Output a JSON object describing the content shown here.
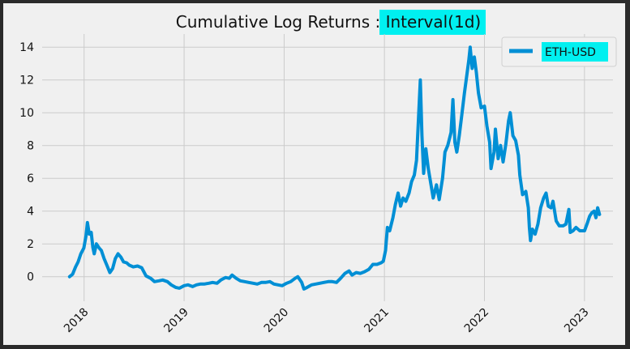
{
  "chart_data": {
    "type": "line",
    "title_prefix": "Cumulative Log Returns : ",
    "title_highlight": "Interval(1d)",
    "title_highlight_color": "#00f0f0",
    "xlabel": "",
    "ylabel": "",
    "xlim": [
      "2017-08-01",
      "2023-04-15"
    ],
    "ylim": [
      -1.2,
      14.8
    ],
    "grid": true,
    "legend_position": "top-right",
    "x_ticks": [
      "2018",
      "2019",
      "2020",
      "2021",
      "2022",
      "2023"
    ],
    "y_ticks": [
      "0",
      "2",
      "4",
      "6",
      "8",
      "10",
      "12",
      "14"
    ],
    "series": [
      {
        "name": "ETH-USD",
        "color": "#008fd5",
        "legend_bg": "#00f0f0",
        "points": [
          [
            "2017-11-09",
            0.0
          ],
          [
            "2017-11-20",
            0.15
          ],
          [
            "2017-12-01",
            0.6
          ],
          [
            "2017-12-10",
            0.9
          ],
          [
            "2017-12-20",
            1.4
          ],
          [
            "2017-12-31",
            1.75
          ],
          [
            "2018-01-08",
            2.5
          ],
          [
            "2018-01-13",
            3.3
          ],
          [
            "2018-01-20",
            2.6
          ],
          [
            "2018-01-27",
            2.7
          ],
          [
            "2018-02-02",
            1.8
          ],
          [
            "2018-02-07",
            1.4
          ],
          [
            "2018-02-15",
            2.0
          ],
          [
            "2018-02-25",
            1.75
          ],
          [
            "2018-03-05",
            1.6
          ],
          [
            "2018-03-15",
            1.1
          ],
          [
            "2018-03-25",
            0.7
          ],
          [
            "2018-04-05",
            0.25
          ],
          [
            "2018-04-15",
            0.5
          ],
          [
            "2018-04-25",
            1.1
          ],
          [
            "2018-05-05",
            1.4
          ],
          [
            "2018-05-15",
            1.2
          ],
          [
            "2018-05-25",
            0.9
          ],
          [
            "2018-06-05",
            0.85
          ],
          [
            "2018-06-15",
            0.7
          ],
          [
            "2018-06-30",
            0.6
          ],
          [
            "2018-07-15",
            0.65
          ],
          [
            "2018-07-30",
            0.55
          ],
          [
            "2018-08-15",
            0.05
          ],
          [
            "2018-09-01",
            -0.1
          ],
          [
            "2018-09-15",
            -0.3
          ],
          [
            "2018-10-01",
            -0.25
          ],
          [
            "2018-10-15",
            -0.2
          ],
          [
            "2018-11-01",
            -0.3
          ],
          [
            "2018-11-15",
            -0.5
          ],
          [
            "2018-12-01",
            -0.65
          ],
          [
            "2018-12-15",
            -0.7
          ],
          [
            "2019-01-01",
            -0.55
          ],
          [
            "2019-01-15",
            -0.5
          ],
          [
            "2019-02-01",
            -0.6
          ],
          [
            "2019-02-15",
            -0.5
          ],
          [
            "2019-03-01",
            -0.45
          ],
          [
            "2019-03-15",
            -0.45
          ],
          [
            "2019-04-01",
            -0.4
          ],
          [
            "2019-04-15",
            -0.35
          ],
          [
            "2019-05-01",
            -0.4
          ],
          [
            "2019-05-15",
            -0.2
          ],
          [
            "2019-06-01",
            -0.05
          ],
          [
            "2019-06-15",
            -0.1
          ],
          [
            "2019-06-25",
            0.1
          ],
          [
            "2019-07-10",
            -0.1
          ],
          [
            "2019-07-25",
            -0.25
          ],
          [
            "2019-08-10",
            -0.3
          ],
          [
            "2019-08-25",
            -0.35
          ],
          [
            "2019-09-10",
            -0.4
          ],
          [
            "2019-09-25",
            -0.45
          ],
          [
            "2019-10-10",
            -0.35
          ],
          [
            "2019-10-25",
            -0.35
          ],
          [
            "2019-11-10",
            -0.3
          ],
          [
            "2019-11-25",
            -0.45
          ],
          [
            "2019-12-10",
            -0.5
          ],
          [
            "2019-12-25",
            -0.55
          ],
          [
            "2020-01-10",
            -0.4
          ],
          [
            "2020-01-25",
            -0.3
          ],
          [
            "2020-02-10",
            -0.1
          ],
          [
            "2020-02-20",
            0.0
          ],
          [
            "2020-03-05",
            -0.35
          ],
          [
            "2020-03-13",
            -0.75
          ],
          [
            "2020-03-25",
            -0.65
          ],
          [
            "2020-04-10",
            -0.5
          ],
          [
            "2020-04-25",
            -0.45
          ],
          [
            "2020-05-10",
            -0.4
          ],
          [
            "2020-05-25",
            -0.35
          ],
          [
            "2020-06-10",
            -0.3
          ],
          [
            "2020-06-25",
            -0.3
          ],
          [
            "2020-07-10",
            -0.35
          ],
          [
            "2020-07-25",
            -0.1
          ],
          [
            "2020-08-10",
            0.2
          ],
          [
            "2020-08-25",
            0.35
          ],
          [
            "2020-09-05",
            0.1
          ],
          [
            "2020-09-20",
            0.25
          ],
          [
            "2020-10-05",
            0.2
          ],
          [
            "2020-10-20",
            0.3
          ],
          [
            "2020-11-05",
            0.45
          ],
          [
            "2020-11-20",
            0.75
          ],
          [
            "2020-12-05",
            0.75
          ],
          [
            "2020-12-20",
            0.85
          ],
          [
            "2020-12-28",
            0.95
          ],
          [
            "2021-01-05",
            1.6
          ],
          [
            "2021-01-12",
            3.0
          ],
          [
            "2021-01-20",
            2.8
          ],
          [
            "2021-02-01",
            3.6
          ],
          [
            "2021-02-10",
            4.4
          ],
          [
            "2021-02-20",
            5.1
          ],
          [
            "2021-03-01",
            4.3
          ],
          [
            "2021-03-10",
            4.8
          ],
          [
            "2021-03-20",
            4.6
          ],
          [
            "2021-04-01",
            5.1
          ],
          [
            "2021-04-10",
            5.8
          ],
          [
            "2021-04-20",
            6.2
          ],
          [
            "2021-04-28",
            7.1
          ],
          [
            "2021-05-05",
            9.5
          ],
          [
            "2021-05-12",
            12.0
          ],
          [
            "2021-05-18",
            8.6
          ],
          [
            "2021-05-24",
            6.3
          ],
          [
            "2021-06-01",
            7.8
          ],
          [
            "2021-06-10",
            6.6
          ],
          [
            "2021-06-20",
            5.6
          ],
          [
            "2021-06-28",
            4.8
          ],
          [
            "2021-07-10",
            5.6
          ],
          [
            "2021-07-20",
            4.7
          ],
          [
            "2021-08-01",
            6.0
          ],
          [
            "2021-08-10",
            7.6
          ],
          [
            "2021-08-20",
            8.0
          ],
          [
            "2021-09-01",
            8.8
          ],
          [
            "2021-09-08",
            10.8
          ],
          [
            "2021-09-15",
            8.2
          ],
          [
            "2021-09-22",
            7.6
          ],
          [
            "2021-10-01",
            8.6
          ],
          [
            "2021-10-10",
            9.8
          ],
          [
            "2021-10-20",
            11.2
          ],
          [
            "2021-10-28",
            12.2
          ],
          [
            "2021-11-05",
            13.2
          ],
          [
            "2021-11-10",
            14.0
          ],
          [
            "2021-11-17",
            12.7
          ],
          [
            "2021-11-25",
            13.4
          ],
          [
            "2021-12-02",
            12.5
          ],
          [
            "2021-12-10",
            11.2
          ],
          [
            "2021-12-20",
            10.3
          ],
          [
            "2022-01-01",
            10.4
          ],
          [
            "2022-01-10",
            9.2
          ],
          [
            "2022-01-20",
            8.2
          ],
          [
            "2022-01-25",
            6.6
          ],
          [
            "2022-02-05",
            7.6
          ],
          [
            "2022-02-10",
            9.0
          ],
          [
            "2022-02-20",
            7.2
          ],
          [
            "2022-03-01",
            8.0
          ],
          [
            "2022-03-10",
            7.0
          ],
          [
            "2022-03-20",
            8.1
          ],
          [
            "2022-03-30",
            9.5
          ],
          [
            "2022-04-05",
            10.0
          ],
          [
            "2022-04-15",
            8.6
          ],
          [
            "2022-04-25",
            8.3
          ],
          [
            "2022-05-05",
            7.4
          ],
          [
            "2022-05-10",
            6.2
          ],
          [
            "2022-05-20",
            5.0
          ],
          [
            "2022-06-01",
            5.2
          ],
          [
            "2022-06-10",
            4.2
          ],
          [
            "2022-06-14",
            3.0
          ],
          [
            "2022-06-18",
            2.2
          ],
          [
            "2022-06-25",
            2.9
          ],
          [
            "2022-07-05",
            2.6
          ],
          [
            "2022-07-15",
            3.2
          ],
          [
            "2022-07-25",
            4.2
          ],
          [
            "2022-08-05",
            4.8
          ],
          [
            "2022-08-14",
            5.1
          ],
          [
            "2022-08-22",
            4.3
          ],
          [
            "2022-09-01",
            4.2
          ],
          [
            "2022-09-08",
            4.6
          ],
          [
            "2022-09-20",
            3.4
          ],
          [
            "2022-10-01",
            3.1
          ],
          [
            "2022-10-15",
            3.1
          ],
          [
            "2022-10-25",
            3.2
          ],
          [
            "2022-11-05",
            4.1
          ],
          [
            "2022-11-10",
            2.7
          ],
          [
            "2022-11-20",
            2.8
          ],
          [
            "2022-12-01",
            3.0
          ],
          [
            "2022-12-15",
            2.8
          ],
          [
            "2023-01-01",
            2.8
          ],
          [
            "2023-01-12",
            3.3
          ],
          [
            "2023-01-20",
            3.7
          ],
          [
            "2023-01-28",
            3.9
          ],
          [
            "2023-02-05",
            4.0
          ],
          [
            "2023-02-12",
            3.6
          ],
          [
            "2023-02-18",
            4.2
          ],
          [
            "2023-02-25",
            3.8
          ]
        ]
      }
    ]
  }
}
